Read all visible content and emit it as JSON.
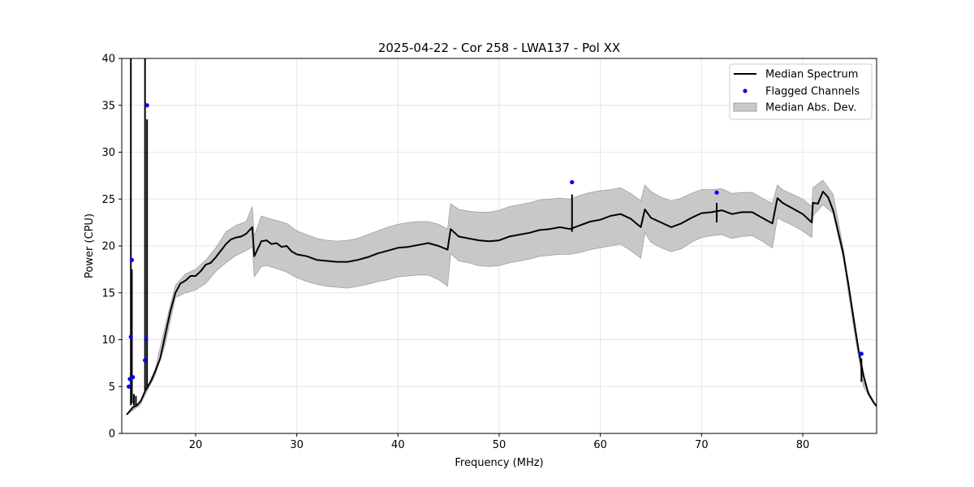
{
  "chart_data": {
    "type": "line",
    "title": "2025-04-22 - Cor 258 - LWA137 - Pol XX",
    "xlabel": "Frequency (MHz)",
    "ylabel": "Power (CPU)",
    "xlim": [
      12.7,
      87.3
    ],
    "ylim": [
      0,
      40
    ],
    "xticks": [
      20,
      30,
      40,
      50,
      60,
      70,
      80
    ],
    "yticks": [
      0,
      5,
      10,
      15,
      20,
      25,
      30,
      35,
      40
    ],
    "grid": true,
    "legend": {
      "placement": "top-right",
      "entries": [
        "Median Spectrum",
        "Flagged Channels",
        "Median Abs. Dev."
      ]
    },
    "colors": {
      "median": "#000000",
      "flagged": "#0000ff",
      "mad_fill": "#c8c8c8",
      "mad_edge": "#a0a0a0"
    },
    "series": [
      {
        "name": "Median Spectrum",
        "x": [
          13.2,
          13.5,
          13.8,
          14.2,
          14.6,
          15.0,
          15.6,
          16.0,
          16.5,
          17.0,
          17.5,
          18.0,
          18.5,
          19.0,
          19.5,
          20.0,
          20.5,
          21.0,
          21.5,
          22.0,
          22.5,
          23.0,
          23.5,
          24.0,
          24.5,
          25.0,
          25.6,
          25.8,
          26.5,
          27.0,
          27.5,
          28.0,
          28.5,
          29.0,
          29.5,
          30.0,
          31.0,
          32.0,
          33.0,
          34.0,
          35.0,
          36.0,
          37.0,
          38.0,
          39.0,
          40.0,
          41.0,
          42.0,
          43.0,
          44.0,
          44.9,
          45.2,
          46.0,
          47.0,
          48.0,
          49.0,
          50.0,
          51.0,
          52.0,
          53.0,
          54.0,
          55.0,
          56.0,
          57.0,
          58.0,
          59.0,
          60.0,
          61.0,
          62.0,
          63.0,
          64.0,
          64.4,
          65.0,
          66.0,
          67.0,
          68.0,
          69.0,
          70.0,
          71.0,
          72.0,
          73.0,
          74.0,
          75.0,
          76.0,
          77.0,
          77.5,
          78.0,
          79.0,
          80.0,
          80.9,
          81.0,
          81.5,
          82.0,
          82.5,
          83.0,
          84.0,
          84.5,
          85.0,
          85.5,
          86.0,
          86.5,
          87.0,
          87.3
        ],
        "values": [
          2.0,
          2.4,
          2.8,
          3.0,
          3.5,
          4.5,
          5.6,
          6.6,
          8.0,
          10.5,
          13.0,
          15.0,
          16.0,
          16.3,
          16.8,
          16.8,
          17.3,
          18.0,
          18.2,
          18.8,
          19.5,
          20.2,
          20.7,
          20.9,
          21.0,
          21.3,
          22.0,
          18.9,
          20.5,
          20.6,
          20.2,
          20.3,
          19.9,
          20.0,
          19.4,
          19.1,
          18.9,
          18.5,
          18.4,
          18.3,
          18.3,
          18.5,
          18.8,
          19.2,
          19.5,
          19.8,
          19.9,
          20.1,
          20.3,
          20.0,
          19.6,
          21.8,
          21.0,
          20.8,
          20.6,
          20.5,
          20.6,
          21.0,
          21.2,
          21.4,
          21.7,
          21.8,
          22.0,
          21.8,
          22.2,
          22.6,
          22.8,
          23.2,
          23.4,
          22.9,
          22.0,
          23.9,
          23.0,
          22.5,
          22.0,
          22.4,
          23.0,
          23.5,
          23.6,
          23.8,
          23.4,
          23.6,
          23.6,
          23.0,
          22.4,
          25.1,
          24.6,
          24.0,
          23.4,
          22.5,
          24.6,
          24.5,
          25.8,
          25.2,
          23.8,
          19.2,
          16.0,
          12.5,
          9.0,
          6.2,
          4.2,
          3.3,
          2.9
        ]
      },
      {
        "name": "Flagged Channels",
        "x": [
          13.4,
          13.5,
          13.6,
          13.7,
          13.8,
          15.0,
          15.1,
          15.2,
          57.2,
          71.5,
          85.8
        ],
        "values": [
          5.0,
          5.8,
          10.3,
          18.5,
          6.0,
          7.8,
          10.1,
          35.0,
          26.8,
          25.7,
          8.5
        ]
      },
      {
        "name": "Median Abs. Dev.",
        "x": [
          13.2,
          14.5,
          16.0,
          17.0,
          18.0,
          19.0,
          20.0,
          21.0,
          22.0,
          23.0,
          24.0,
          25.0,
          25.6,
          25.8,
          26.5,
          27.0,
          28.0,
          29.0,
          30.0,
          31.0,
          32.0,
          33.0,
          34.0,
          35.0,
          36.0,
          37.0,
          38.0,
          39.0,
          40.0,
          41.0,
          42.0,
          43.0,
          44.0,
          44.9,
          45.2,
          46.0,
          47.0,
          48.0,
          49.0,
          50.0,
          51.0,
          52.0,
          53.0,
          54.0,
          55.0,
          56.0,
          57.0,
          58.0,
          59.0,
          60.0,
          61.0,
          62.0,
          63.0,
          64.0,
          64.4,
          65.0,
          66.0,
          67.0,
          68.0,
          69.0,
          70.0,
          71.0,
          72.0,
          73.0,
          74.0,
          75.0,
          76.0,
          77.0,
          77.5,
          78.0,
          79.0,
          80.0,
          80.9,
          81.0,
          82.0,
          83.0,
          84.0,
          85.0,
          86.0,
          87.3
        ],
        "upper": [
          2.1,
          3.2,
          6.8,
          11.5,
          15.8,
          17.0,
          17.5,
          18.5,
          19.8,
          21.5,
          22.2,
          22.6,
          24.2,
          21.0,
          23.2,
          23.0,
          22.7,
          22.4,
          21.6,
          21.2,
          20.8,
          20.6,
          20.5,
          20.6,
          20.8,
          21.2,
          21.6,
          22.0,
          22.3,
          22.5,
          22.6,
          22.6,
          22.3,
          21.8,
          24.5,
          23.9,
          23.7,
          23.6,
          23.6,
          23.8,
          24.2,
          24.4,
          24.6,
          24.9,
          25.0,
          25.1,
          25.0,
          25.4,
          25.7,
          25.9,
          26.0,
          26.2,
          25.6,
          24.8,
          26.5,
          25.8,
          25.2,
          24.8,
          25.1,
          25.6,
          26.0,
          26.0,
          26.1,
          25.6,
          25.7,
          25.7,
          25.1,
          24.5,
          26.5,
          26.0,
          25.5,
          25.0,
          24.2,
          26.2,
          27.0,
          25.5,
          19.8,
          12.0,
          5.5,
          2.9
        ],
        "lower": [
          2.0,
          3.0,
          6.2,
          9.5,
          14.5,
          15.0,
          15.3,
          16.0,
          17.3,
          18.2,
          19.0,
          19.5,
          19.9,
          16.7,
          17.8,
          17.9,
          17.6,
          17.2,
          16.6,
          16.2,
          15.9,
          15.7,
          15.6,
          15.5,
          15.7,
          15.9,
          16.2,
          16.4,
          16.7,
          16.8,
          16.9,
          16.9,
          16.4,
          15.7,
          19.2,
          18.4,
          18.2,
          17.9,
          17.8,
          17.9,
          18.2,
          18.4,
          18.6,
          18.9,
          19.0,
          19.1,
          19.1,
          19.3,
          19.6,
          19.8,
          20.0,
          20.2,
          19.5,
          18.7,
          21.4,
          20.4,
          19.8,
          19.4,
          19.7,
          20.4,
          20.9,
          21.1,
          21.2,
          20.8,
          21.0,
          21.1,
          20.5,
          19.8,
          23.0,
          22.7,
          22.2,
          21.6,
          20.9,
          23.2,
          24.4,
          23.5,
          18.7,
          11.5,
          5.0,
          2.8
        ]
      }
    ],
    "spikes": [
      {
        "x": 13.6,
        "bottom": 3.0,
        "top": 40.0
      },
      {
        "x": 13.7,
        "bottom": 3.2,
        "top": 17.5
      },
      {
        "x": 13.9,
        "bottom": 3.0,
        "top": 4.2
      },
      {
        "x": 14.1,
        "bottom": 3.0,
        "top": 4.0
      },
      {
        "x": 15.0,
        "bottom": 4.5,
        "top": 40.0
      },
      {
        "x": 15.2,
        "bottom": 4.8,
        "top": 33.5
      },
      {
        "x": 57.2,
        "bottom": 21.5,
        "top": 25.5
      },
      {
        "x": 71.5,
        "bottom": 22.5,
        "top": 24.6
      },
      {
        "x": 85.8,
        "bottom": 5.5,
        "top": 8.0
      }
    ]
  }
}
